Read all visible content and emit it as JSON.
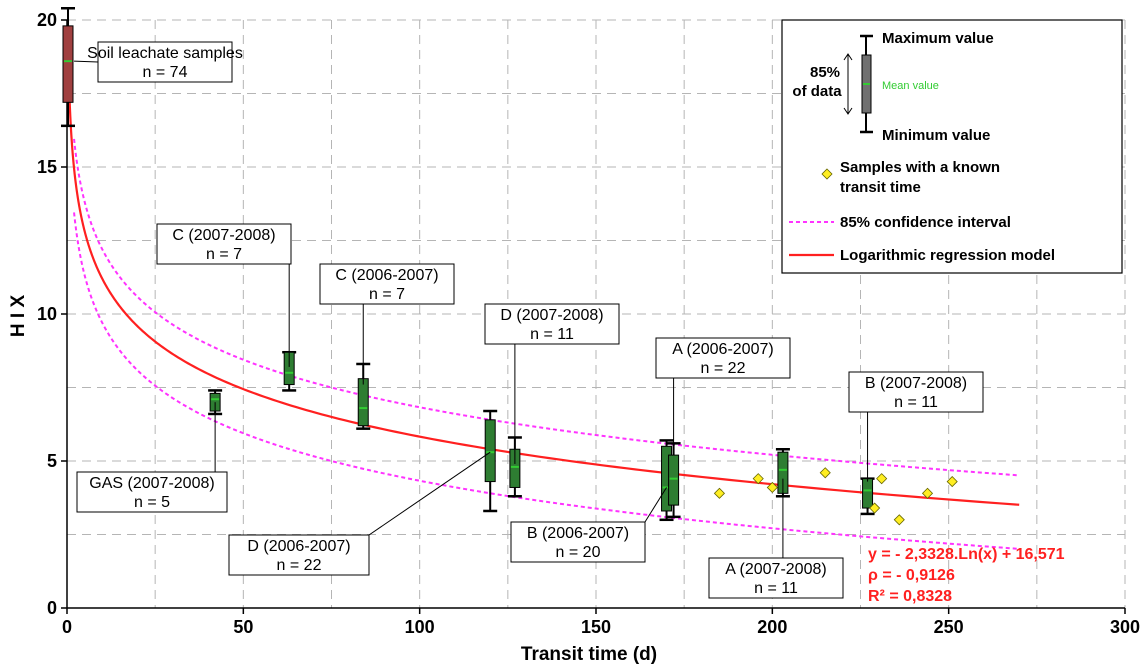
{
  "chart_data": {
    "type": "box",
    "xlabel": "Transit time (d)",
    "ylabel": "H I X",
    "xlim": [
      0,
      300
    ],
    "ylim": [
      0,
      20
    ],
    "x_ticks": [
      0,
      50,
      100,
      150,
      200,
      250,
      300
    ],
    "y_ticks": [
      0,
      5,
      10,
      15,
      20
    ],
    "grid": true,
    "boxes": [
      {
        "label": "Soil leachate samples",
        "n_label": "n = 74",
        "x": 0,
        "min": 16.4,
        "q_low": 17.2,
        "mean": 18.6,
        "q_high": 19.8,
        "max": 20.4,
        "color": "#a04040"
      },
      {
        "label": "GAS (2007-2008)",
        "n_label": "n = 5",
        "x": 42,
        "min": 6.6,
        "q_low": 6.7,
        "mean": 7.1,
        "q_high": 7.3,
        "max": 7.4,
        "color": "#2e7d32"
      },
      {
        "label": "C (2007-2008)",
        "n_label": "n = 7",
        "x": 63,
        "min": 7.4,
        "q_low": 7.6,
        "mean": 8.0,
        "q_high": 8.7,
        "max": 8.7,
        "color": "#2e7d32"
      },
      {
        "label": "C (2006-2007)",
        "n_label": "n = 7",
        "x": 84,
        "min": 6.1,
        "q_low": 6.2,
        "mean": 6.8,
        "q_high": 7.8,
        "max": 8.3,
        "color": "#2e7d32"
      },
      {
        "label": "D (2006-2007)",
        "n_label": "n = 22",
        "x": 120,
        "min": 3.3,
        "q_low": 4.3,
        "mean": 5.3,
        "q_high": 6.4,
        "max": 6.7,
        "color": "#2e7d32"
      },
      {
        "label": "D (2007-2008)",
        "n_label": "n = 11",
        "x": 127,
        "min": 3.8,
        "q_low": 4.1,
        "mean": 4.8,
        "q_high": 5.4,
        "max": 5.8,
        "color": "#2e7d32"
      },
      {
        "label": "B (2006-2007)",
        "n_label": "n = 20",
        "x": 170,
        "min": 3.0,
        "q_low": 3.3,
        "mean": 4.1,
        "q_high": 5.5,
        "max": 5.7,
        "color": "#2e7d32"
      },
      {
        "label": "A (2006-2007)",
        "n_label": "n = 22",
        "x": 172,
        "min": 3.1,
        "q_low": 3.5,
        "mean": 4.4,
        "q_high": 5.2,
        "max": 5.6,
        "color": "#2e7d32"
      },
      {
        "label": "A (2007-2008)",
        "n_label": "n = 11",
        "x": 203,
        "min": 3.8,
        "q_low": 3.9,
        "mean": 4.7,
        "q_high": 5.3,
        "max": 5.4,
        "color": "#2e7d32"
      },
      {
        "label": "B (2007-2008)",
        "n_label": "n = 11",
        "x": 227,
        "min": 3.2,
        "q_low": 3.4,
        "mean": 4.0,
        "q_high": 4.4,
        "max": 4.4,
        "color": "#2e7d32"
      }
    ],
    "known_transit_samples": [
      {
        "x": 185,
        "y": 3.9
      },
      {
        "x": 196,
        "y": 4.4
      },
      {
        "x": 200,
        "y": 4.1
      },
      {
        "x": 215,
        "y": 4.6
      },
      {
        "x": 229,
        "y": 3.4
      },
      {
        "x": 231,
        "y": 4.4
      },
      {
        "x": 236,
        "y": 3.0
      },
      {
        "x": 244,
        "y": 3.9
      },
      {
        "x": 251,
        "y": 4.3
      }
    ],
    "regression": {
      "slope": -2.3328,
      "intercept": 16.571,
      "x_range": [
        0.3,
        270
      ],
      "color": "#ff2020"
    },
    "confidence": {
      "offset_upper": 1.0,
      "offset_lower": -1.5,
      "x_range": [
        2,
        270
      ],
      "color": "#ff33ff"
    },
    "equation_lines": [
      "y = - 2,3328.Ln(x) + 16,571",
      "ρ = - 0,9126",
      "R² = 0,8328"
    ],
    "legend": {
      "position": "top-right",
      "max_label": "Maximum value",
      "min_label": "Minimum value",
      "pct_label_1": "85%",
      "pct_label_2": "of data",
      "mean_label": "Mean value",
      "known_label_1": "Samples with a known",
      "known_label_2": "transit time",
      "ci_label": "85% confidence interval",
      "reg_label": "Logarithmic regression model"
    }
  }
}
